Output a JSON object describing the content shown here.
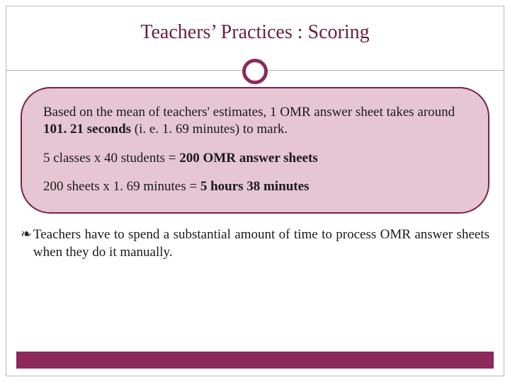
{
  "title": "Teachers’ Practices : Scoring",
  "colors": {
    "accent": "#8c2a5c",
    "title_text": "#6b2140",
    "callout_fill": "#e6c6d2",
    "callout_border": "#7a2248",
    "frame_border": "#c0b8b8",
    "body_text": "#1a1a1a"
  },
  "callout": {
    "p1_pre": "Based on the mean of teachers' estimates, 1 OMR answer sheet takes around ",
    "p1_bold": "101. 21 seconds",
    "p1_post": " (i. e. 1. 69 minutes) to mark.",
    "p2_pre": "5 classes x 40 students = ",
    "p2_bold": "200 OMR answer sheets",
    "p3_pre": "200 sheets x 1. 69 minutes = ",
    "p3_bold": "5 hours 38 minutes"
  },
  "bullet": {
    "glyph": "❧",
    "text": "Teachers have to spend a substantial amount of time to process OMR answer sheets when they do it manually."
  },
  "style": {
    "title_fontsize": 28,
    "body_fontsize": 19,
    "ring_border_width": 5,
    "callout_radius": 42
  }
}
